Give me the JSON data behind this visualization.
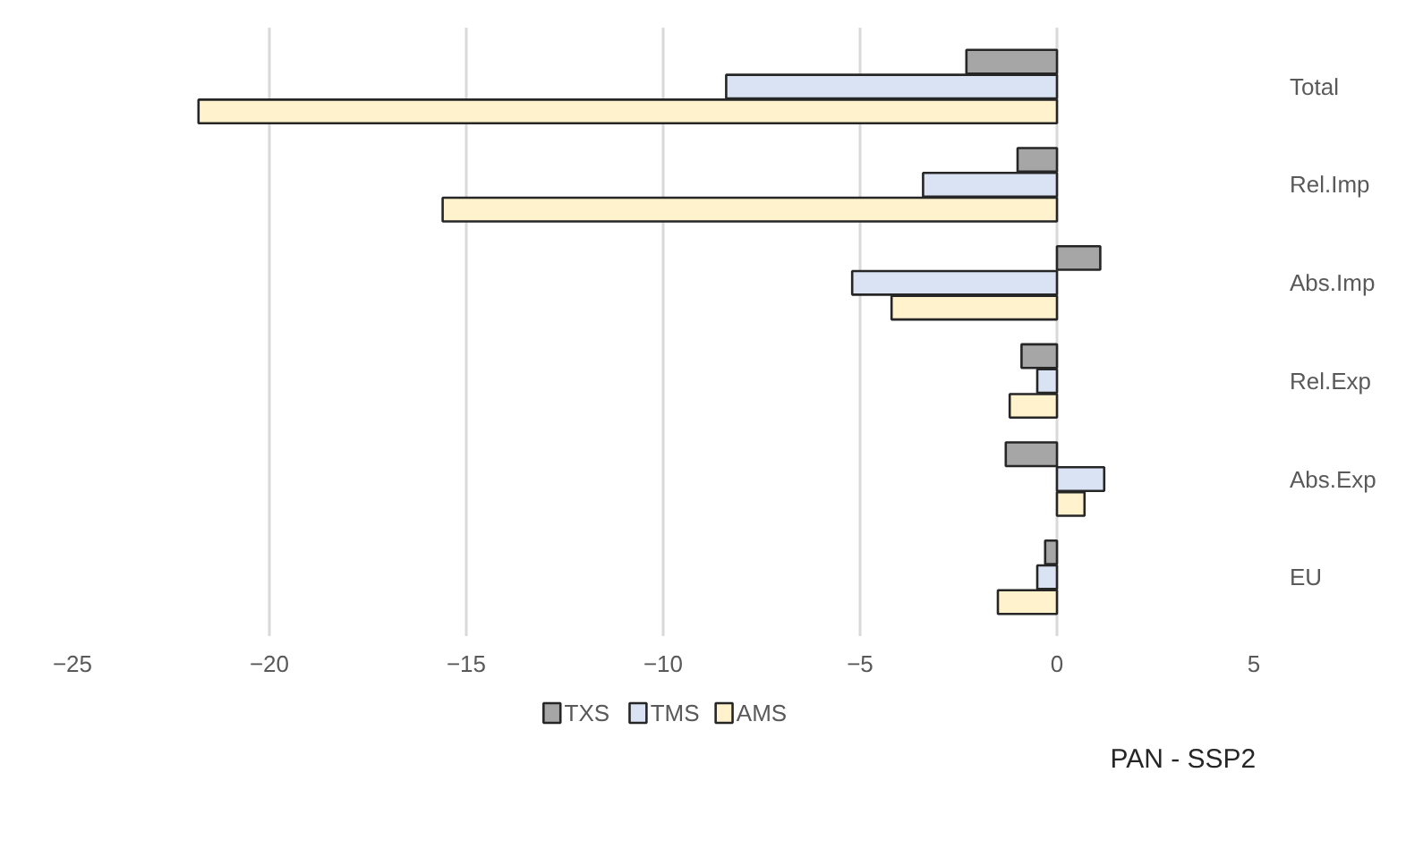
{
  "chart_data": {
    "type": "bar",
    "orientation": "horizontal",
    "categories": [
      "Total",
      "Rel.Imp",
      "Abs.Imp",
      "Rel.Exp",
      "Abs.Exp",
      "EU"
    ],
    "series": [
      {
        "name": "TXS",
        "color": "#a6a6a6",
        "values": [
          -2.3,
          -1.0,
          1.1,
          -0.9,
          -1.3,
          -0.3
        ]
      },
      {
        "name": "TMS",
        "color": "#dae3f3",
        "values": [
          -8.4,
          -3.4,
          -5.2,
          -0.5,
          1.2,
          -0.5
        ]
      },
      {
        "name": "AMS",
        "color": "#fff2cc",
        "values": [
          -21.8,
          -15.6,
          -4.2,
          -1.2,
          0.7,
          -1.5
        ]
      }
    ],
    "xlim": [
      -25,
      5
    ],
    "xticks": [
      -25,
      -20,
      -15,
      -10,
      -5,
      0,
      5
    ],
    "grid": "x",
    "legend": "bottom",
    "annotations": [
      "PAN - SSP2"
    ]
  }
}
